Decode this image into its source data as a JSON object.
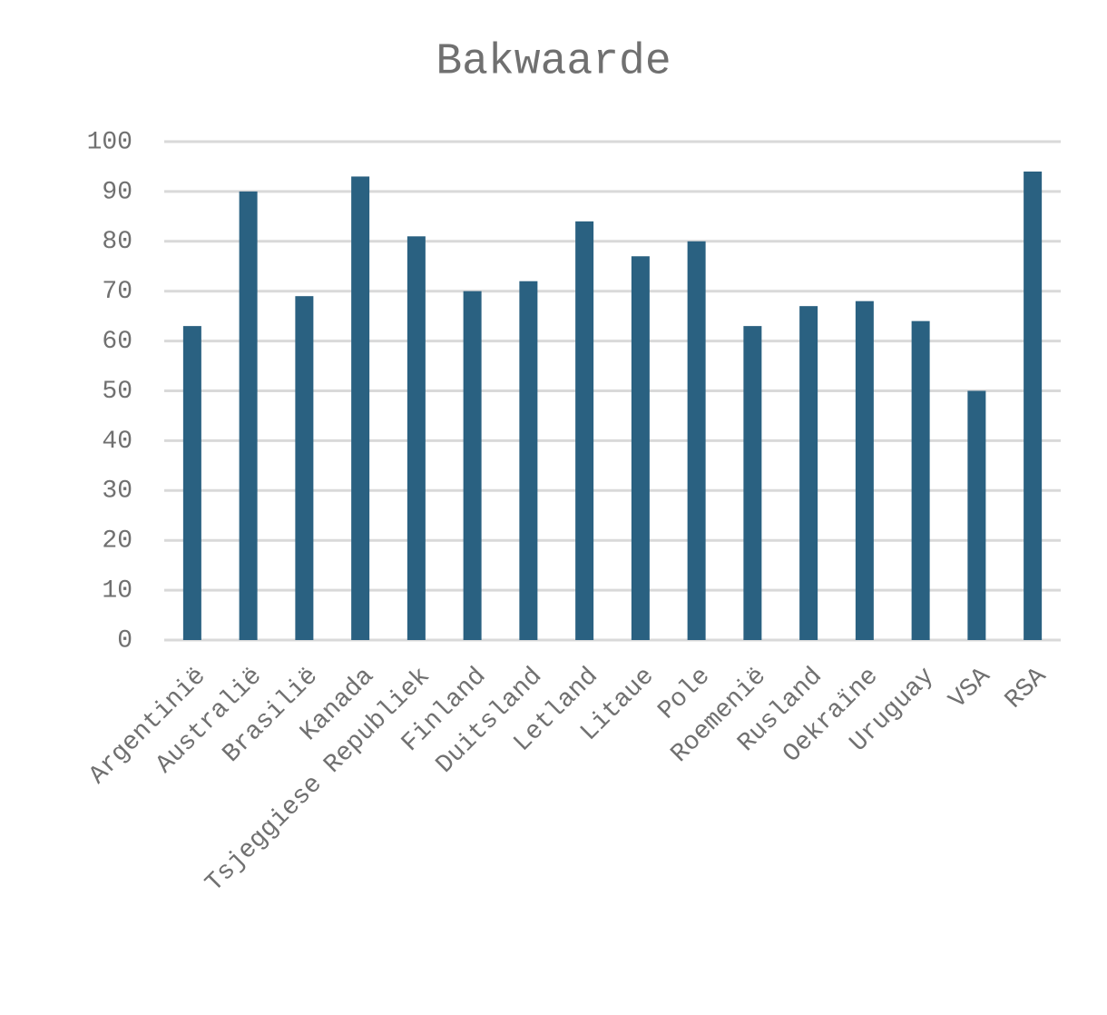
{
  "chart_data": {
    "type": "bar",
    "title": "Bakwaarde",
    "categories": [
      "Argentinië",
      "Australië",
      "Brasilië",
      "Kanada",
      "Tsjeggiese Republiek",
      "Finland",
      "Duitsland",
      "Letland",
      "Litaue",
      "Pole",
      "Roemenië",
      "Rusland",
      "Oekraïne",
      "Uruguay",
      "VSA",
      "RSA"
    ],
    "values": [
      63,
      90,
      69,
      93,
      81,
      70,
      72,
      84,
      77,
      80,
      63,
      67,
      68,
      64,
      50,
      94
    ],
    "color": "#2a6181",
    "ylim": [
      0,
      100
    ],
    "yticks": [
      0,
      10,
      20,
      30,
      40,
      50,
      60,
      70,
      80,
      90,
      100
    ],
    "grid": true
  }
}
